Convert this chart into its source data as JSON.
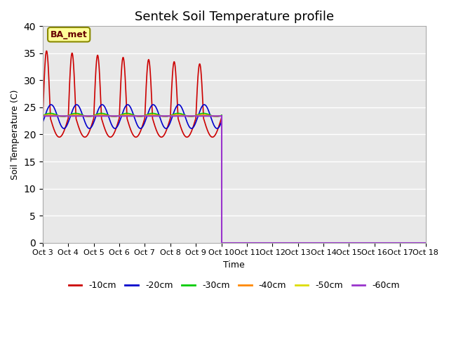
{
  "title": "Sentek Soil Temperature profile",
  "xlabel": "Time",
  "ylabel": "Soil Temperature (C)",
  "annotation_text": "BA_met",
  "ylim": [
    0,
    40
  ],
  "xlim": [
    0,
    15
  ],
  "xtick_labels": [
    "Oct 3",
    "Oct 4",
    "Oct 5",
    "Oct 6",
    "Oct 7",
    "Oct 8",
    "Oct 9",
    "Oct 10",
    "Oct 11",
    "Oct 12",
    "Oct 13",
    "Oct 14",
    "Oct 15",
    "Oct 16",
    "Oct 17",
    "Oct 18"
  ],
  "background_color": "#e8e8e8",
  "series": {
    "-10cm": {
      "color": "#cc0000",
      "linewidth": 1.2
    },
    "-20cm": {
      "color": "#0000cc",
      "linewidth": 1.2
    },
    "-30cm": {
      "color": "#00cc00",
      "linewidth": 1.2
    },
    "-40cm": {
      "color": "#ff8800",
      "linewidth": 1.2
    },
    "-50cm": {
      "color": "#dddd00",
      "linewidth": 1.2
    },
    "-60cm": {
      "color": "#9933cc",
      "linewidth": 1.5
    }
  }
}
